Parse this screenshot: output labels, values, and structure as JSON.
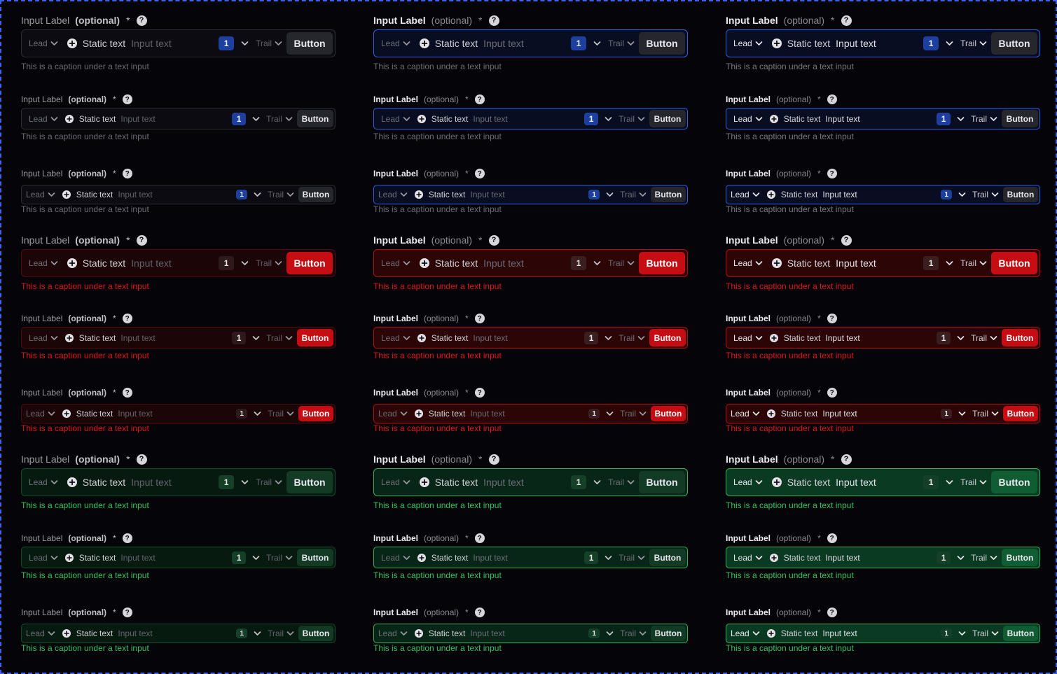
{
  "field": {
    "label": "Input Label",
    "optional": "(optional)",
    "required_mark": "*",
    "help_icon": "?",
    "lead": "Lead",
    "static_text": "Static text",
    "input_text": "Input text",
    "badge": "1",
    "trail": "Trail",
    "button": "Button",
    "caption": "This is a caption under a text input"
  },
  "colors": {
    "background": "#050509",
    "frame": "#3b64e8",
    "blue_accent": "#2f5fe0",
    "red_accent": "#c70d14",
    "green_accent": "#2fb35a",
    "error_caption": "#e0151c",
    "success_caption": "#32c260"
  },
  "grid": {
    "states": [
      "default",
      "error",
      "success"
    ],
    "sizes": [
      "large",
      "medium",
      "small"
    ],
    "variants": [
      "idle",
      "focused",
      "filled"
    ]
  }
}
